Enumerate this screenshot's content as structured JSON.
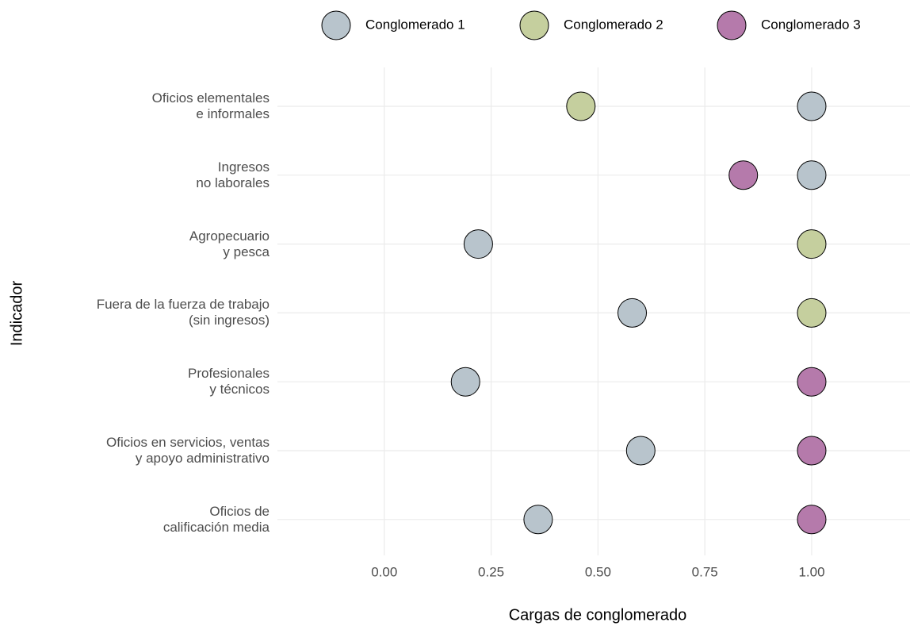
{
  "chart_data": {
    "type": "dot",
    "x_label": "Cargas de conglomerado",
    "y_label": "Indicador",
    "categories": [
      "Oficios elementales\ne informales",
      "Ingresos\nno laborales",
      "Agropecuario\ny pesca",
      "Fuera de la fuerza de trabajo\n(sin ingresos)",
      "Profesionales\ny técnicos",
      "Oficios en servicios, ventas\ny apoyo administrativo",
      "Oficios de\ncalificación media"
    ],
    "series": [
      {
        "name": "Conglomerado 1",
        "color": "#b8c4cc",
        "values": [
          1.0,
          1.0,
          0.22,
          0.58,
          0.19,
          0.6,
          0.36
        ]
      },
      {
        "name": "Conglomerado 2",
        "color": "#c5cf9e",
        "values": [
          0.46,
          null,
          1.0,
          1.0,
          null,
          null,
          null
        ]
      },
      {
        "name": "Conglomerado 3",
        "color": "#b57aab",
        "values": [
          null,
          0.84,
          null,
          null,
          1.0,
          1.0,
          1.0
        ]
      }
    ],
    "xlim": [
      -0.25,
      1.23
    ],
    "xticks": [
      {
        "value": 0,
        "label": "0.00"
      },
      {
        "value": 0.25,
        "label": "0.25"
      },
      {
        "value": 0.5,
        "label": "0.50"
      },
      {
        "value": 0.75,
        "label": "0.75"
      },
      {
        "value": 1,
        "label": "1.00"
      }
    ],
    "grid": true,
    "legend": "top"
  }
}
